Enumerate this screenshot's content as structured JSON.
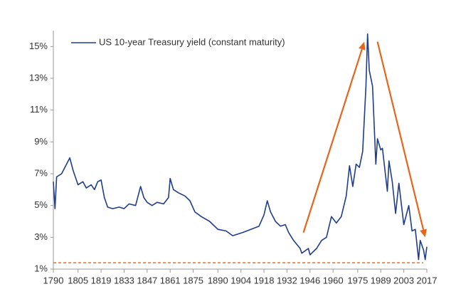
{
  "chart_data": {
    "type": "line",
    "series": [
      {
        "name": "US 10-year Treasury yield (constant maturity)",
        "color": "#1f3d8c",
        "values": [
          6.5,
          4.8,
          6.8,
          7.0,
          7.6,
          8.0,
          7.2,
          6.3,
          6.5,
          6.1,
          6.3,
          6.0,
          6.5,
          6.6,
          5.5,
          4.9,
          4.8,
          4.9,
          4.8,
          5.1,
          5.0,
          6.2,
          5.5,
          5.2,
          5.0,
          5.2,
          5.1,
          5.5,
          6.7,
          6.0,
          5.8,
          5.6,
          5.3,
          4.6,
          4.3,
          4.0,
          3.5,
          3.4,
          3.1,
          3.2,
          3.3,
          3.5,
          3.7,
          4.4,
          5.3,
          4.6,
          4.0,
          3.7,
          3.8,
          3.3,
          2.8,
          2.3,
          2.0,
          2.3,
          1.9,
          2.3,
          2.8,
          3.0,
          4.3,
          3.9,
          4.3,
          5.6,
          7.5,
          6.2,
          7.6,
          7.4,
          8.4,
          12.5,
          15.8,
          13.5,
          12.5,
          7.6,
          9.2,
          8.5,
          8.6,
          5.9,
          7.8,
          6.5,
          4.5,
          6.4,
          3.8,
          5.0,
          3.4,
          3.5,
          1.6,
          2.8,
          2.2,
          1.6,
          2.4
        ]
      }
    ],
    "x": [
      1790,
      1791,
      1792,
      1795,
      1798,
      1800,
      1802,
      1805,
      1808,
      1810,
      1813,
      1815,
      1817,
      1819,
      1821,
      1823,
      1826,
      1830,
      1833,
      1836,
      1840,
      1843,
      1845,
      1847,
      1850,
      1853,
      1857,
      1860,
      1861,
      1863,
      1866,
      1870,
      1873,
      1876,
      1880,
      1885,
      1890,
      1895,
      1899,
      1902,
      1905,
      1910,
      1915,
      1918,
      1920,
      1922,
      1925,
      1928,
      1931,
      1933,
      1936,
      1940,
      1941,
      1945,
      1946,
      1950,
      1953,
      1956,
      1959,
      1962,
      1965,
      1968,
      1970,
      1972,
      1974,
      1976,
      1978,
      1980,
      1981,
      1982,
      1984,
      1986,
      1987,
      1989,
      1990,
      1993,
      1994,
      1996,
      1998,
      2000,
      2003,
      2006,
      2008,
      2010,
      2012,
      2013,
      2015,
      2016,
      2017
    ],
    "xlim": [
      1790,
      2017
    ],
    "xticks": [
      1790,
      1805,
      1819,
      1833,
      1847,
      1861,
      1875,
      1890,
      1904,
      1918,
      1932,
      1946,
      1960,
      1975,
      1989,
      2003,
      2017
    ],
    "ylim": [
      1,
      16
    ],
    "yticks": [
      {
        "value": 1,
        "label": "1%"
      },
      {
        "value": 3,
        "label": "3%"
      },
      {
        "value": 5,
        "label": "5%"
      },
      {
        "value": 7,
        "label": "7%"
      },
      {
        "value": 9,
        "label": "9%"
      },
      {
        "value": 11,
        "label": "11%"
      },
      {
        "value": 13,
        "label": "13%"
      },
      {
        "value": 15,
        "label": "15%"
      }
    ],
    "grid": false,
    "legend": "top-left",
    "reference_line": {
      "value": 1.4,
      "color": "#e8641b"
    },
    "arrows": [
      {
        "x1": 1942,
        "y1": 3.3,
        "x2": 1979,
        "y2": 15.3,
        "color": "#e8641b"
      },
      {
        "x1": 1987,
        "y1": 15.3,
        "x2": 2016,
        "y2": 3.0,
        "color": "#e8641b"
      }
    ]
  }
}
